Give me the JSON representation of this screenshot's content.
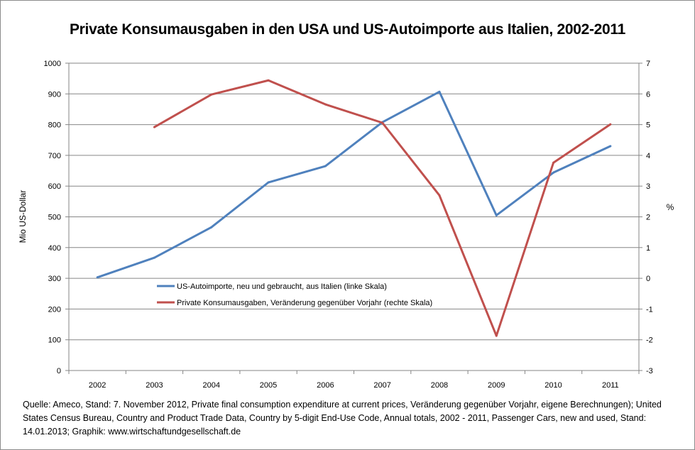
{
  "chart_data": {
    "type": "line",
    "title": "Private Konsumausgaben in den USA und US-Autoimporte aus Italien, 2002-2011",
    "xlabel": "",
    "ylabel": "Mio US-Dollar",
    "ylabel_right": "%",
    "categories": [
      "2002",
      "2003",
      "2004",
      "2005",
      "2006",
      "2007",
      "2008",
      "2009",
      "2010",
      "2011"
    ],
    "ylim": [
      0,
      1000
    ],
    "yticks": [
      "0",
      "100",
      "200",
      "300",
      "400",
      "500",
      "600",
      "700",
      "800",
      "900",
      "1000"
    ],
    "ylim_right": [
      -3,
      7
    ],
    "yticks_right": [
      "-3",
      "-2",
      "-1",
      "0",
      "1",
      "2",
      "3",
      "4",
      "5",
      "6",
      "7"
    ],
    "grid": "horizontal",
    "legend_position": "center-left",
    "series": [
      {
        "name": "US-Autoimporte, neu und gebraucht, aus Italien (linke Skala)",
        "axis": "left",
        "color": "#4f81bd",
        "values": [
          303,
          367,
          466,
          612,
          665,
          808,
          907,
          505,
          644,
          730
        ]
      },
      {
        "name": "Private Konsumausgaben, Veränderung gegenüber Vorjahr (rechte Skala)",
        "axis": "right",
        "color": "#c0504d",
        "values": [
          null,
          4.92,
          5.98,
          6.44,
          5.66,
          5.06,
          2.7,
          -1.87,
          3.76,
          5.01
        ]
      }
    ]
  },
  "footer": {
    "source_text": "Quelle: Ameco, Stand: 7. November 2012, Private final consumption expenditure at current prices, Veränderung gegenüber Vorjahr, eigene Berechnungen); United States Census Bureau, Country and Product Trade Data, Country by 5-digit End-Use Code, Annual totals, 2002 - 2011, Passenger Cars, new and used, Stand: 14.01.2013; Graphik: www.wirtschaftundgesellschaft.de"
  }
}
